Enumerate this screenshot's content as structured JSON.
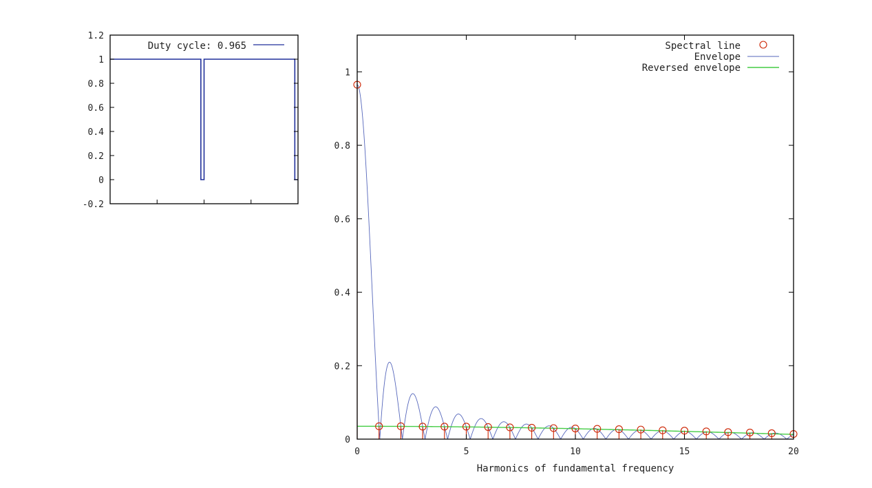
{
  "chart_data": [
    {
      "type": "line",
      "panel": "duty-cycle-waveform",
      "title": "",
      "xlabel": "",
      "ylabel": "",
      "xlim": [
        0,
        1
      ],
      "ylim": [
        -0.2,
        1.2
      ],
      "y_ticks": [
        "-0.2",
        "0",
        "0.2",
        "0.4",
        "0.6",
        "0.8",
        "1",
        "1.2"
      ],
      "y_tick_values": [
        -0.2,
        0,
        0.2,
        0.4,
        0.6,
        0.8,
        1,
        1.2
      ],
      "x_tick_values": [
        0.25,
        0.5,
        0.75
      ],
      "x_tick_labels_shown": false,
      "grid": false,
      "legend_position": "top",
      "series": [
        {
          "name": "Duty cycle: 0.965",
          "color": "#1f2f9a",
          "x": [
            0,
            0.483,
            0.483,
            0.5,
            0.5,
            0.983,
            0.983,
            1.0
          ],
          "values": [
            1,
            1,
            0,
            0,
            1,
            1,
            0,
            0
          ]
        }
      ]
    },
    {
      "type": "scatter",
      "panel": "spectrum",
      "title": "",
      "xlabel": "Harmonics of fundamental frequency",
      "ylabel": "",
      "xlim": [
        0,
        20
      ],
      "ylim": [
        0,
        1.1
      ],
      "x_ticks": [
        "0",
        "5",
        "10",
        "15",
        "20"
      ],
      "x_tick_values": [
        0,
        5,
        10,
        15,
        20
      ],
      "y_ticks": [
        "0",
        "0.2",
        "0.4",
        "0.6",
        "0.8",
        "1"
      ],
      "y_tick_values": [
        0,
        0.2,
        0.4,
        0.6,
        0.8,
        1
      ],
      "grid": false,
      "legend_position": "top-right",
      "duty_cycle": 0.965,
      "series": [
        {
          "name": "Spectral line",
          "style": "stem-circles",
          "color": "#cc2200",
          "x": [
            0,
            1,
            2,
            3,
            4,
            5,
            6,
            7,
            8,
            9,
            10,
            11,
            12,
            13,
            14,
            15,
            16,
            17,
            18,
            19,
            20
          ],
          "values": [
            0.965,
            0.035,
            0.035,
            0.034,
            0.034,
            0.034,
            0.033,
            0.032,
            0.031,
            0.03,
            0.029,
            0.028,
            0.027,
            0.026,
            0.024,
            0.023,
            0.021,
            0.019,
            0.018,
            0.016,
            0.014
          ]
        },
        {
          "name": "Envelope",
          "style": "line",
          "color": "#5566bb",
          "function": "abs(duty_cycle * sinc(duty_cycle * x))"
        },
        {
          "name": "Reversed envelope",
          "style": "line",
          "color": "#44cc44",
          "function": "abs((1 - duty_cycle) * sinc((1 - duty_cycle) * x))"
        }
      ]
    }
  ]
}
